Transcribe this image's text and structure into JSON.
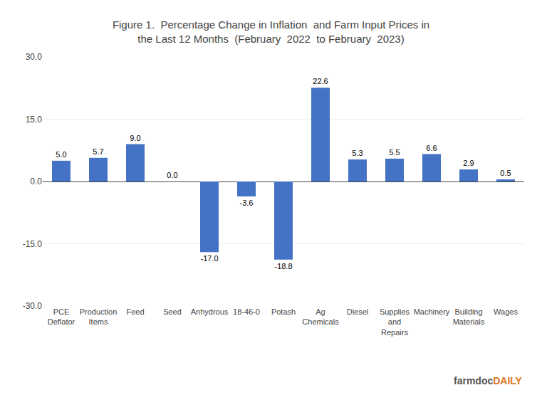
{
  "chart_data": {
    "type": "bar",
    "title": "Figure 1.  Percentage Change in Inflation  and Farm Input Prices in\nthe Last 12 Months  (February  2022  to February  2023)",
    "categories": [
      "PCE\nDeflator",
      "Production\nItems",
      "Feed",
      "Seed",
      "Anhydrous",
      "18-46-0",
      "Potash",
      "Ag\nChemicals",
      "Diesel",
      "Supplies\nand\nRepairs",
      "Machinery",
      "Building\nMaterials",
      "Wages"
    ],
    "values": [
      5.0,
      5.7,
      9.0,
      0.0,
      -17.0,
      -3.6,
      -18.8,
      22.6,
      5.3,
      5.5,
      6.6,
      2.9,
      0.5
    ],
    "value_labels": [
      "5.0",
      "5.7",
      "9.0",
      "0.0",
      "-17.0",
      "-3.6",
      "-18.8",
      "22.6",
      "5.3",
      "5.5",
      "6.6",
      "2.9",
      "0.5"
    ],
    "data_labels": true,
    "color": "#4472c4",
    "ylim": [
      -30,
      30
    ],
    "yticks": [
      {
        "value": -30,
        "label": "-30.0"
      },
      {
        "value": -15,
        "label": "-15.0"
      },
      {
        "value": 0,
        "label": "0.0"
      },
      {
        "value": 15,
        "label": "15.0"
      },
      {
        "value": 30,
        "label": "30.0"
      }
    ],
    "grid": true,
    "annotations": [
      {
        "text": "farmdoc",
        "color": "#555555"
      },
      {
        "text": "DAILY",
        "color": "#e07820"
      }
    ]
  }
}
